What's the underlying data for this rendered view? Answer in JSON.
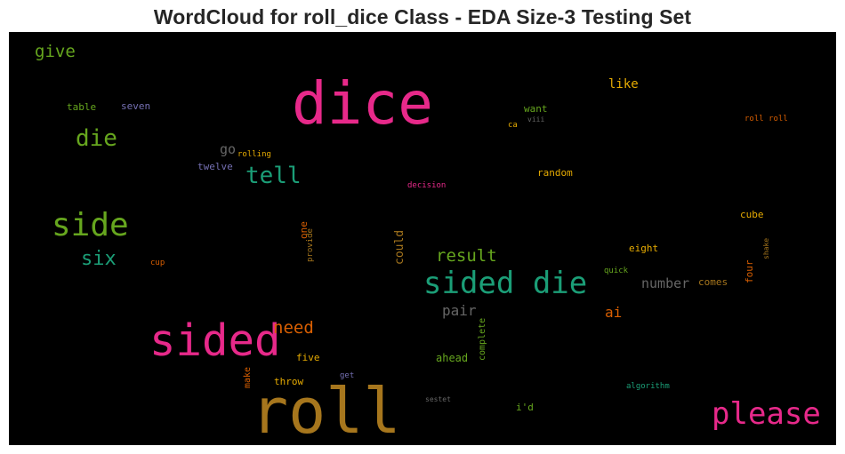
{
  "title": "WordCloud for roll_dice Class - EDA Size-3 Testing Set",
  "palette": {
    "pink": "#e7298a",
    "green": "#66a61e",
    "teal": "#1b9e77",
    "orange": "#d95f02",
    "gold": "#e6ab02",
    "brown": "#a6761d",
    "purple": "#7570b3",
    "gray": "#666666"
  },
  "words": {
    "dice": "dice",
    "roll": "roll",
    "sided": "sided",
    "sided_die": "sided die",
    "please": "please",
    "side": "side",
    "die": "die",
    "tell": "tell",
    "six": "six",
    "give": "give",
    "result": "result",
    "need": "need",
    "pair": "pair",
    "ai": "ai",
    "number": "number",
    "like": "like",
    "go": "go",
    "could": "could",
    "table": "table",
    "seven": "seven",
    "twelve": "twelve",
    "rolling": "rolling",
    "want": "want",
    "ca": "ca",
    "viii": "viii",
    "roll_roll": "roll roll",
    "random": "random",
    "decision": "decision",
    "cube": "cube",
    "one": "one",
    "provide": "provide",
    "cup": "cup",
    "eight": "eight",
    "quick": "quick",
    "comes": "comes",
    "four": "four",
    "shake": "shake",
    "five": "five",
    "ahead": "ahead",
    "get": "get",
    "make": "make",
    "throw": "throw",
    "complete": "complete",
    "sestet": "sestet",
    "id": "i'd",
    "algorithm": "algorithm"
  }
}
